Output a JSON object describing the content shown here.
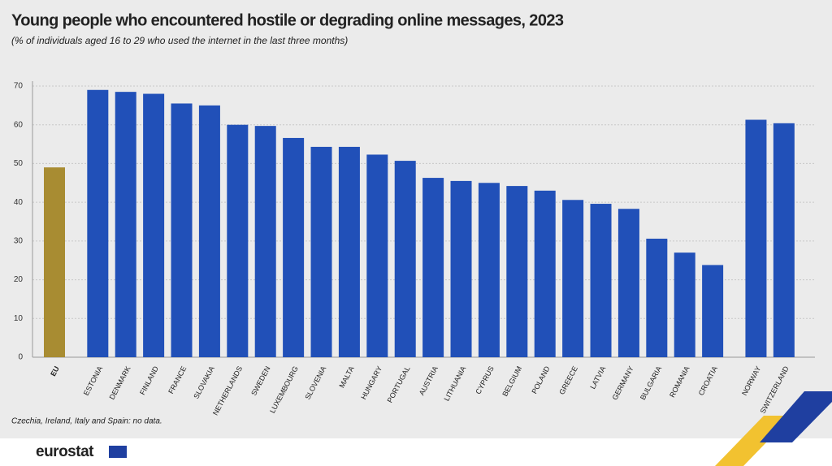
{
  "chart_data": {
    "type": "bar",
    "title": "Young people who encountered hostile or degrading online messages, 2023",
    "subtitle": "(% of individuals aged 16 to 29 who used the internet in the last three months)",
    "note": "Czechia, Ireland, Italy and Spain: no data.",
    "source": "eurostat",
    "categories": [
      "EU",
      "Estonia",
      "Denmark",
      "Finland",
      "France",
      "Slovakia",
      "Netherlands",
      "Sweden",
      "Luxembourg",
      "Slovenia",
      "Malta",
      "Hungary",
      "Portugal",
      "Austria",
      "Lithuania",
      "Cyprus",
      "Belgium",
      "Poland",
      "Greece",
      "Latvia",
      "Germany",
      "Bulgaria",
      "Romania",
      "Croatia",
      "Norway",
      "Switzerland"
    ],
    "values": [
      49,
      69,
      68.5,
      68,
      65.5,
      65,
      60,
      59.7,
      56.6,
      54.3,
      54.3,
      52.3,
      50.7,
      46.3,
      45.5,
      45,
      44.2,
      43,
      40.6,
      39.6,
      38.3,
      30.6,
      27,
      23.8,
      61.3,
      60.4
    ],
    "color": "#2150b8",
    "highlight_color": "#a88c32",
    "highlight_categories": [
      "EU"
    ],
    "ylim": [
      0,
      70
    ],
    "yticks": [
      0,
      10,
      20,
      30,
      40,
      50,
      60,
      70
    ],
    "grid": true
  }
}
